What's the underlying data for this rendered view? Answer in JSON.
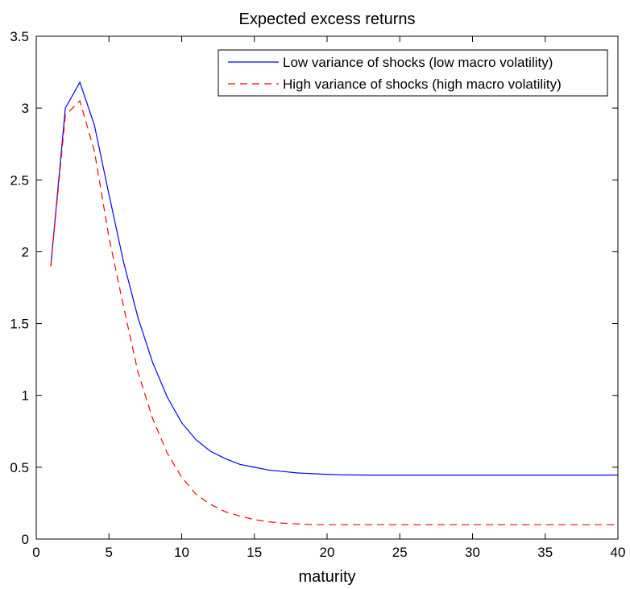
{
  "chart_data": {
    "type": "line",
    "title": "Expected excess returns",
    "xlabel": "maturity",
    "ylabel": "",
    "xlim": [
      0,
      40
    ],
    "ylim": [
      0,
      3.5
    ],
    "xticks": [
      0,
      5,
      10,
      15,
      20,
      25,
      30,
      35,
      40
    ],
    "yticks": [
      0,
      0.5,
      1,
      1.5,
      2,
      2.5,
      3,
      3.5
    ],
    "grid": false,
    "legend_position": "top-right",
    "series": [
      {
        "name": "Low variance of shocks (low macro volatility)",
        "color": "#0000ff",
        "style": "solid",
        "x": [
          1,
          2,
          3,
          4,
          5,
          6,
          7,
          8,
          9,
          10,
          11,
          12,
          13,
          14,
          15,
          16,
          17,
          18,
          19,
          20,
          21,
          22,
          23,
          24,
          25,
          26,
          27,
          28,
          29,
          30,
          31,
          32,
          33,
          34,
          35,
          36,
          37,
          38,
          39,
          40
        ],
        "y": [
          1.9,
          3.0,
          3.18,
          2.88,
          2.4,
          1.93,
          1.54,
          1.23,
          0.99,
          0.81,
          0.69,
          0.61,
          0.56,
          0.52,
          0.5,
          0.48,
          0.47,
          0.46,
          0.455,
          0.45,
          0.447,
          0.446,
          0.445,
          0.445,
          0.445,
          0.445,
          0.445,
          0.445,
          0.445,
          0.445,
          0.445,
          0.445,
          0.445,
          0.445,
          0.445,
          0.445,
          0.445,
          0.445,
          0.445,
          0.445
        ]
      },
      {
        "name": "High variance of shocks (high macro volatility)",
        "color": "#ff0000",
        "style": "dashed",
        "x": [
          1,
          2,
          3,
          4,
          5,
          6,
          7,
          8,
          9,
          10,
          11,
          12,
          13,
          14,
          15,
          16,
          17,
          18,
          19,
          20,
          21,
          22,
          23,
          24,
          25,
          26,
          27,
          28,
          29,
          30,
          31,
          32,
          33,
          34,
          35,
          36,
          37,
          38,
          39,
          40
        ],
        "y": [
          1.9,
          2.95,
          3.05,
          2.7,
          2.1,
          1.62,
          1.16,
          0.84,
          0.6,
          0.43,
          0.31,
          0.24,
          0.19,
          0.16,
          0.135,
          0.12,
          0.11,
          0.105,
          0.1,
          0.1,
          0.1,
          0.1,
          0.1,
          0.1,
          0.1,
          0.1,
          0.1,
          0.1,
          0.1,
          0.1,
          0.1,
          0.1,
          0.1,
          0.1,
          0.1,
          0.1,
          0.1,
          0.1,
          0.1,
          0.1
        ]
      }
    ]
  }
}
